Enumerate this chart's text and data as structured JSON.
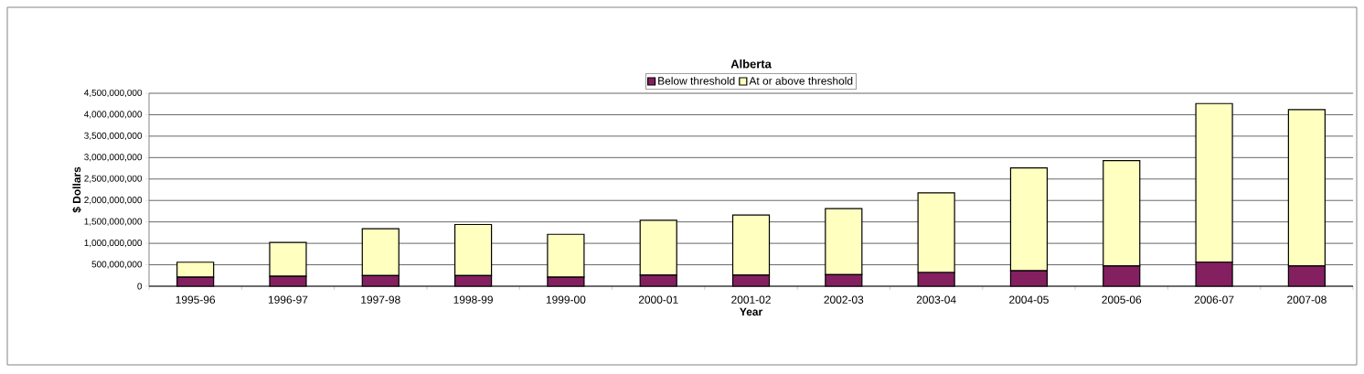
{
  "chart_data": {
    "type": "bar",
    "stacked": true,
    "title": "Alberta",
    "xlabel": "Year",
    "ylabel": "$ Dollars",
    "categories": [
      "1995-96",
      "1996-97",
      "1997-98",
      "1998-99",
      "1999-00",
      "2000-01",
      "2001-02",
      "2002-03",
      "2003-04",
      "2004-05",
      "2005-06",
      "2006-07",
      "2007-08"
    ],
    "series": [
      {
        "name": "Below threshold",
        "color": "#842060",
        "values": [
          210000000,
          230000000,
          250000000,
          250000000,
          210000000,
          260000000,
          260000000,
          270000000,
          320000000,
          360000000,
          470000000,
          560000000,
          470000000
        ]
      },
      {
        "name": "At or above threshold",
        "color": "#ffffc0",
        "values": [
          350000000,
          790000000,
          1090000000,
          1190000000,
          1000000000,
          1280000000,
          1400000000,
          1540000000,
          1860000000,
          2400000000,
          2460000000,
          3700000000,
          3650000000
        ]
      }
    ],
    "ylim": [
      0,
      4500000000
    ],
    "yticks": [
      {
        "value": 0,
        "label": "0"
      },
      {
        "value": 500000000,
        "label": "500,000,000"
      },
      {
        "value": 1000000000,
        "label": "1,000,000,000"
      },
      {
        "value": 1500000000,
        "label": "1,500,000,000"
      },
      {
        "value": 2000000000,
        "label": "2,000,000,000"
      },
      {
        "value": 2500000000,
        "label": "2,500,000,000"
      },
      {
        "value": 3000000000,
        "label": "3,000,000,000"
      },
      {
        "value": 3500000000,
        "label": "3,500,000,000"
      },
      {
        "value": 4000000000,
        "label": "4,000,000,000"
      },
      {
        "value": 4500000000,
        "label": "4,500,000,000"
      }
    ],
    "grid": "y",
    "legend": "top"
  }
}
